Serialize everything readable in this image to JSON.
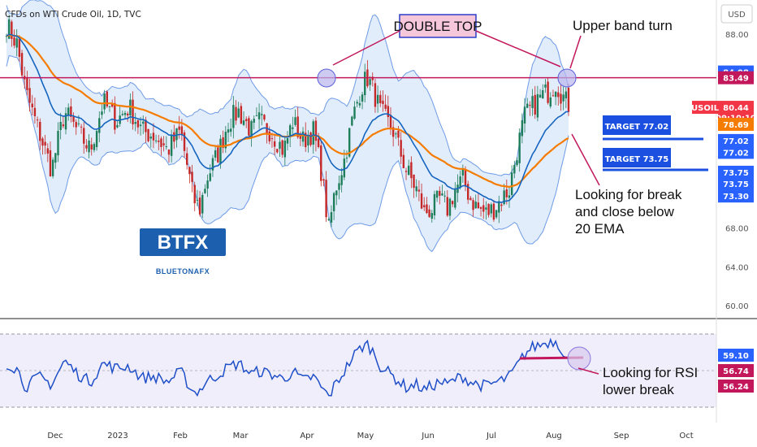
{
  "header": {
    "title": "CFDs on WTI Crude Oil, 1D, TVC",
    "currency": "USD"
  },
  "chart_data": {
    "type": "candlestick",
    "x_ticks": [
      "Dec",
      "2023",
      "Feb",
      "Mar",
      "Apr",
      "May",
      "Jun",
      "Jul",
      "Aug",
      "Sep",
      "Oct"
    ],
    "price_ticks": [
      "88.00",
      "84.00",
      "80.00",
      "76.00",
      "72.00",
      "68.00",
      "64.00",
      "60.00"
    ],
    "ylim": [
      59,
      91
    ],
    "price_path": [
      [
        0,
        89
      ],
      [
        8,
        87
      ],
      [
        15,
        82
      ],
      [
        25,
        78
      ],
      [
        35,
        74
      ],
      [
        45,
        80
      ],
      [
        55,
        78
      ],
      [
        65,
        76
      ],
      [
        75,
        81
      ],
      [
        85,
        79
      ],
      [
        95,
        80.5
      ],
      [
        105,
        78
      ],
      [
        115,
        77.5
      ],
      [
        125,
        76
      ],
      [
        135,
        78
      ],
      [
        145,
        71
      ],
      [
        150,
        70
      ],
      [
        155,
        73
      ],
      [
        165,
        76
      ],
      [
        172,
        79
      ],
      [
        180,
        80
      ],
      [
        190,
        78
      ],
      [
        196,
        79
      ],
      [
        205,
        78
      ],
      [
        215,
        76
      ],
      [
        222,
        79
      ],
      [
        230,
        77
      ],
      [
        238,
        78
      ],
      [
        244,
        74
      ],
      [
        250,
        67.8
      ],
      [
        255,
        72
      ],
      [
        262,
        75
      ],
      [
        268,
        79
      ],
      [
        275,
        82.5
      ],
      [
        280,
        83.5
      ],
      [
        285,
        82
      ],
      [
        290,
        80
      ],
      [
        295,
        79
      ],
      [
        300,
        78
      ],
      [
        305,
        76
      ],
      [
        310,
        74
      ],
      [
        318,
        72
      ],
      [
        324,
        69.6
      ],
      [
        330,
        70
      ],
      [
        336,
        71
      ],
      [
        342,
        70
      ],
      [
        348,
        72
      ],
      [
        354,
        73
      ],
      [
        360,
        71
      ],
      [
        366,
        70
      ],
      [
        372,
        69.5
      ],
      [
        378,
        70
      ],
      [
        384,
        71
      ],
      [
        390,
        72
      ],
      [
        396,
        76
      ],
      [
        402,
        79.5
      ],
      [
        408,
        80.5
      ],
      [
        414,
        81.5
      ],
      [
        420,
        82
      ],
      [
        426,
        83
      ],
      [
        430,
        82
      ],
      [
        434,
        81
      ],
      [
        438,
        80.4
      ]
    ],
    "rsi_path": [
      [
        0,
        58
      ],
      [
        8,
        54
      ],
      [
        15,
        40
      ],
      [
        25,
        48
      ],
      [
        35,
        42
      ],
      [
        45,
        60
      ],
      [
        55,
        50
      ],
      [
        65,
        44
      ],
      [
        75,
        58
      ],
      [
        85,
        54
      ],
      [
        95,
        56
      ],
      [
        105,
        47
      ],
      [
        115,
        48
      ],
      [
        125,
        44
      ],
      [
        135,
        52
      ],
      [
        145,
        36
      ],
      [
        150,
        38
      ],
      [
        155,
        44
      ],
      [
        165,
        50
      ],
      [
        172,
        55
      ],
      [
        180,
        58
      ],
      [
        190,
        50
      ],
      [
        196,
        52
      ],
      [
        205,
        50
      ],
      [
        215,
        46
      ],
      [
        222,
        52
      ],
      [
        230,
        45
      ],
      [
        238,
        48
      ],
      [
        244,
        40
      ],
      [
        250,
        33
      ],
      [
        255,
        42
      ],
      [
        262,
        52
      ],
      [
        268,
        62
      ],
      [
        275,
        70
      ],
      [
        280,
        72
      ],
      [
        285,
        66
      ],
      [
        290,
        56
      ],
      [
        295,
        52
      ],
      [
        300,
        48
      ],
      [
        305,
        44
      ],
      [
        310,
        40
      ],
      [
        318,
        42
      ],
      [
        324,
        38
      ],
      [
        330,
        41
      ],
      [
        336,
        44
      ],
      [
        342,
        42
      ],
      [
        348,
        46
      ],
      [
        354,
        48
      ],
      [
        360,
        44
      ],
      [
        366,
        42
      ],
      [
        372,
        41
      ],
      [
        378,
        43
      ],
      [
        384,
        45
      ],
      [
        390,
        48
      ],
      [
        396,
        56
      ],
      [
        402,
        65
      ],
      [
        408,
        70
      ],
      [
        414,
        72
      ],
      [
        420,
        74
      ],
      [
        426,
        75
      ],
      [
        430,
        70
      ],
      [
        434,
        62
      ],
      [
        438,
        59
      ]
    ],
    "double_top_level": 83.49,
    "series": [
      {
        "name": "USOIL",
        "value": "80.44"
      }
    ],
    "price_labels": [
      {
        "text": "84.08",
        "color": "#2962ff",
        "y": 84.08
      },
      {
        "text": "83.49",
        "color": "#c2185b",
        "y": 83.49
      },
      {
        "text": "80.44",
        "color": "#f23645",
        "y": 80.44
      },
      {
        "text": "09:10:10",
        "color": "#f23645",
        "y": 79.4
      },
      {
        "text": "78.69",
        "color": "#f57c00",
        "y": 78.69
      },
      {
        "text": "77.02",
        "color": "#2962ff",
        "y": 77.02
      },
      {
        "text": "77.02",
        "color": "#2962ff",
        "y": 75.8
      },
      {
        "text": "73.75",
        "color": "#2962ff",
        "y": 73.75
      },
      {
        "text": "73.75",
        "color": "#2962ff",
        "y": 72.55
      },
      {
        "text": "73.30",
        "color": "#2962ff",
        "y": 71.3
      }
    ],
    "rsi_labels": [
      {
        "text": "59.10",
        "color": "#2962ff"
      },
      {
        "text": "56.74",
        "color": "#c2185b"
      },
      {
        "text": "56.24",
        "color": "#c2185b"
      }
    ],
    "annotations": {
      "double_top": "DOUBLE TOP",
      "upper_band": "Upper band turn",
      "target1": "TARGET 77.02",
      "target2": "TARGET 73.75",
      "ema_note": [
        "Looking for break",
        "and close below",
        "20 EMA"
      ],
      "rsi_note": [
        "Looking for RSI",
        "lower break"
      ]
    },
    "logo": {
      "main": "BTFX",
      "sub": "BLUETONAFX"
    },
    "colors": {
      "bull": "#1e7e5a",
      "bear": "#c62828",
      "band": "#dbe9fb",
      "ema_fast": "#1565c0",
      "ema_slow": "#f57c00",
      "rsi_line": "#1e4fc8",
      "level": "#c2185b"
    }
  }
}
